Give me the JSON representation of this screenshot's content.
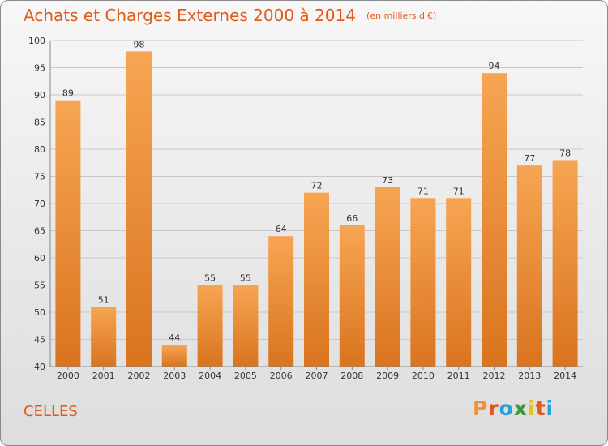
{
  "chart_data": {
    "type": "bar",
    "title": "Achats et Charges Externes 2000 à 2014",
    "subtitle": "(en milliers d'€)",
    "categories": [
      "2000",
      "2001",
      "2002",
      "2003",
      "2004",
      "2005",
      "2006",
      "2007",
      "2008",
      "2009",
      "2010",
      "2011",
      "2012",
      "2013",
      "2014"
    ],
    "values": [
      89,
      51,
      98,
      44,
      55,
      55,
      64,
      72,
      66,
      73,
      71,
      71,
      94,
      77,
      78
    ],
    "ylim": [
      40,
      100
    ],
    "yticks": [
      40,
      45,
      50,
      55,
      60,
      65,
      70,
      75,
      80,
      85,
      90,
      95,
      100
    ],
    "grid": true,
    "bar_color": "#f0923a"
  },
  "footer": {
    "commune": "CELLES",
    "logo": "Proxiti",
    "logo_colors": [
      "#f0923a",
      "#e05a1a",
      "#2a9fd8",
      "#3a9a3a",
      "#e8c020",
      "#e05a1a",
      "#2a9fd8"
    ]
  }
}
